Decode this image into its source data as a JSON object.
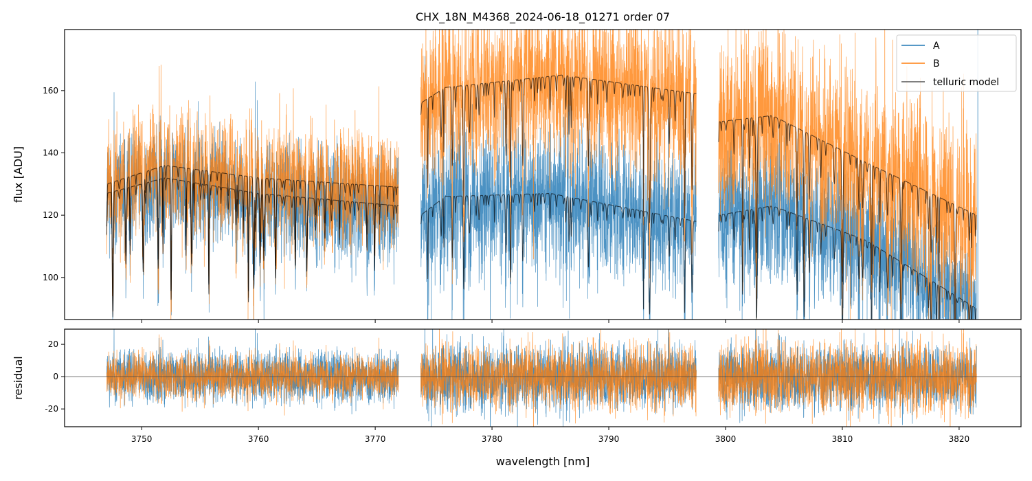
{
  "chart_data": {
    "type": "line",
    "title": "CHX_18N_M4368_2024-06-18_01271  order 07",
    "xlabel": "wavelength [nm]",
    "top_panel": {
      "ylabel": "flux [ADU]",
      "ylim": [
        86.5,
        179.6
      ],
      "yticks": [
        100,
        120,
        140,
        160
      ],
      "grid": false,
      "legend_placement": "top-right"
    },
    "bottom_panel": {
      "ylabel": "residual",
      "ylim": [
        -31,
        29.4
      ],
      "yticks": [
        -20,
        0,
        20
      ],
      "zero_line": 0
    },
    "xlim": [
      3743.4,
      3825.3
    ],
    "xticks": [
      3750,
      3760,
      3770,
      3780,
      3790,
      3800,
      3810,
      3820
    ],
    "legend": [
      "A",
      "B",
      "telluric model"
    ],
    "colors": {
      "A": "#1f77b4",
      "B": "#ff7f0e",
      "model": "#000000"
    },
    "segments": [
      {
        "range": [
          3747.0,
          3772.0
        ],
        "A_model": [
          [
            3747.0,
            127
          ],
          [
            3752,
            132
          ],
          [
            3760,
            127
          ],
          [
            3772.0,
            123
          ]
        ],
        "B_model": [
          [
            3747.0,
            130
          ],
          [
            3752,
            136
          ],
          [
            3760,
            132
          ],
          [
            3772.0,
            129
          ]
        ],
        "noise_A": 9,
        "noise_B": 9
      },
      {
        "range": [
          3773.9,
          3797.5
        ],
        "A_model": [
          [
            3773.9,
            120
          ],
          [
            3776,
            126
          ],
          [
            3785,
            127
          ],
          [
            3797.5,
            118
          ]
        ],
        "B_model": [
          [
            3773.9,
            156
          ],
          [
            3776,
            161
          ],
          [
            3786,
            165
          ],
          [
            3797.5,
            159
          ]
        ],
        "noise_A": 11,
        "noise_B": 13
      },
      {
        "range": [
          3799.4,
          3821.5
        ],
        "A_model": [
          [
            3799.4,
            120
          ],
          [
            3804,
            123
          ],
          [
            3812,
            112
          ],
          [
            3821.5,
            90
          ]
        ],
        "B_model": [
          [
            3799.4,
            150
          ],
          [
            3804,
            152
          ],
          [
            3812,
            137
          ],
          [
            3821.5,
            120
          ]
        ],
        "noise_A": 11,
        "noise_B": 14
      }
    ]
  }
}
